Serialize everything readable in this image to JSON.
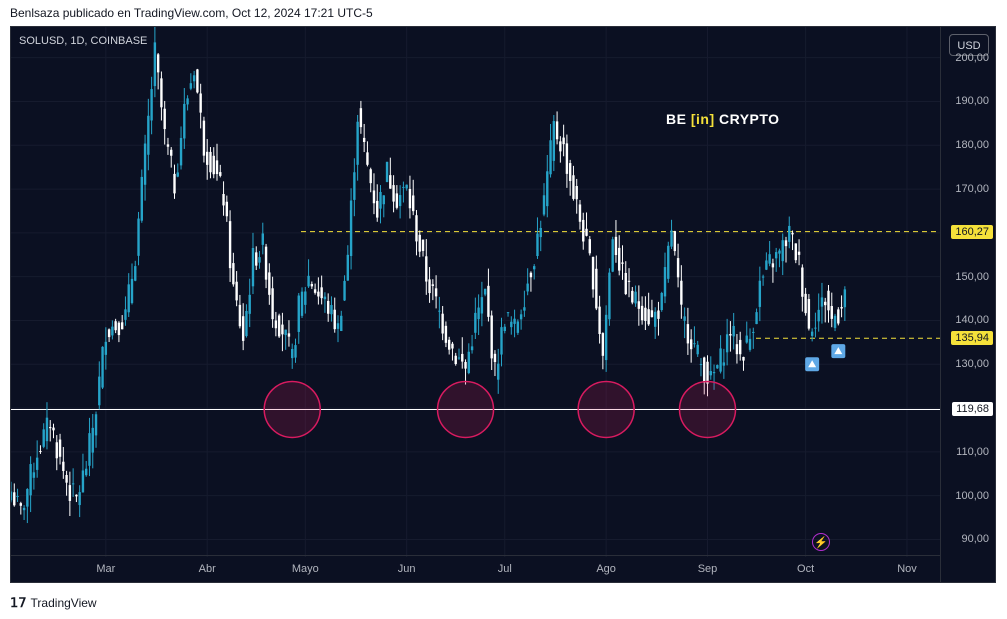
{
  "header": {
    "text": "Benlsaza publicado en TradingView.com, Oct 12, 2024 17:21 UTC-5"
  },
  "symbol": {
    "text": "SOLUSD, 1D, COINBASE"
  },
  "currency": "USD",
  "logo": {
    "be": "BE",
    "in": "[in]",
    "crypto": "CRYPTO"
  },
  "footer": {
    "brand": "TradingView",
    "icon": "tradingview-logo-icon"
  },
  "colors": {
    "bg": "#0b1022",
    "up": "#26a4c9",
    "down": "#ffffff",
    "level": "#f5e13a",
    "support": "#ffffff",
    "circle": "#d81b60"
  },
  "chart_data": {
    "type": "candlestick",
    "symbol": "SOLUSD",
    "interval": "1D",
    "exchange": "COINBASE",
    "ylim": [
      86,
      207
    ],
    "yticks": [
      90,
      100,
      110,
      120,
      130,
      140,
      150,
      160,
      170,
      180,
      190,
      200
    ],
    "ytick_labels": [
      "90,00",
      "100,00",
      "110,00",
      "120,00",
      "130,00",
      "140,00",
      "150,00",
      "160,00",
      "170,00",
      "180,00",
      "190,00",
      "200,00"
    ],
    "x_months": [
      "Mar",
      "Abr",
      "Mayo",
      "Jun",
      "Jul",
      "Ago",
      "Sep",
      "Oct",
      "Nov"
    ],
    "x_month_day_index": [
      29,
      60,
      90,
      121,
      151,
      182,
      213,
      243,
      274
    ],
    "levels": [
      {
        "value": 160.27,
        "label": "160,27",
        "style": "dashed",
        "color": "yellow"
      },
      {
        "value": 135.94,
        "label": "135,94",
        "style": "dashed",
        "color": "yellow"
      },
      {
        "value": 119.68,
        "label": "119,68",
        "style": "solid",
        "color": "white"
      }
    ],
    "support_circles": [
      {
        "day": 86,
        "value": 119.68
      },
      {
        "day": 139,
        "value": 119.68
      },
      {
        "day": 182,
        "value": 119.68
      },
      {
        "day": 213,
        "value": 119.68
      }
    ],
    "markers": [
      {
        "day": 245,
        "value": 130,
        "type": "up-arrow"
      },
      {
        "day": 253,
        "value": 133,
        "type": "up-arrow"
      }
    ],
    "anchors": [
      [
        0,
        101
      ],
      [
        3,
        96
      ],
      [
        8,
        110
      ],
      [
        12,
        117
      ],
      [
        15,
        108
      ],
      [
        18,
        101
      ],
      [
        20,
        99
      ],
      [
        23,
        107
      ],
      [
        26,
        120
      ],
      [
        29,
        138
      ],
      [
        32,
        139
      ],
      [
        35,
        141
      ],
      [
        38,
        155
      ],
      [
        41,
        178
      ],
      [
        44,
        201
      ],
      [
        47,
        182
      ],
      [
        50,
        171
      ],
      [
        53,
        188
      ],
      [
        56,
        198
      ],
      [
        59,
        180
      ],
      [
        62,
        175
      ],
      [
        65,
        168
      ],
      [
        68,
        147
      ],
      [
        71,
        136
      ],
      [
        74,
        154
      ],
      [
        77,
        157
      ],
      [
        80,
        142
      ],
      [
        83,
        138
      ],
      [
        86,
        131
      ],
      [
        88,
        143
      ],
      [
        91,
        150
      ],
      [
        94,
        146
      ],
      [
        97,
        143
      ],
      [
        100,
        138
      ],
      [
        103,
        155
      ],
      [
        106,
        187
      ],
      [
        109,
        175
      ],
      [
        112,
        165
      ],
      [
        115,
        174
      ],
      [
        118,
        168
      ],
      [
        121,
        170
      ],
      [
        124,
        160
      ],
      [
        127,
        150
      ],
      [
        130,
        144
      ],
      [
        133,
        137
      ],
      [
        136,
        132
      ],
      [
        139,
        129
      ],
      [
        142,
        140
      ],
      [
        145,
        146
      ],
      [
        148,
        128
      ],
      [
        151,
        141
      ],
      [
        154,
        138
      ],
      [
        157,
        146
      ],
      [
        160,
        155
      ],
      [
        163,
        167
      ],
      [
        166,
        184
      ],
      [
        169,
        179
      ],
      [
        172,
        169
      ],
      [
        175,
        160
      ],
      [
        178,
        150
      ],
      [
        181,
        132
      ],
      [
        184,
        160
      ],
      [
        187,
        150
      ],
      [
        190,
        145
      ],
      [
        193,
        143
      ],
      [
        196,
        140
      ],
      [
        199,
        144
      ],
      [
        202,
        161
      ],
      [
        205,
        141
      ],
      [
        208,
        136
      ],
      [
        211,
        130
      ],
      [
        214,
        126
      ],
      [
        217,
        131
      ],
      [
        220,
        138
      ],
      [
        223,
        132
      ],
      [
        226,
        136
      ],
      [
        229,
        148
      ],
      [
        232,
        153
      ],
      [
        235,
        155
      ],
      [
        238,
        160
      ],
      [
        241,
        153
      ],
      [
        244,
        138
      ],
      [
        246,
        141
      ],
      [
        249,
        145
      ],
      [
        251,
        140
      ],
      [
        253,
        142
      ],
      [
        255,
        147
      ]
    ]
  }
}
